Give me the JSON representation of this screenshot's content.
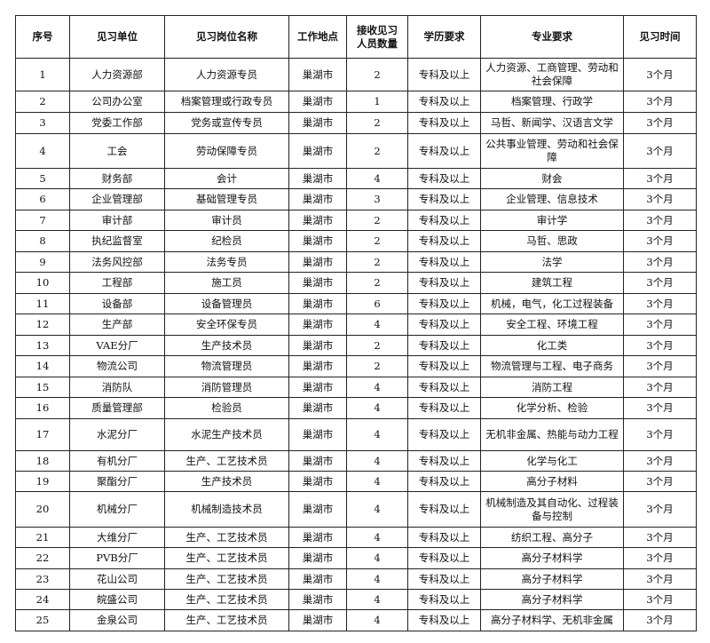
{
  "table": {
    "headers": [
      "序号",
      "见习单位",
      "见习岗位名称",
      "工作地点",
      "接收见习人员数量",
      "学历要求",
      "专业要求",
      "见习时间"
    ],
    "rows": [
      [
        "1",
        "人力资源部",
        "人力资源专员",
        "巢湖市",
        "2",
        "专科及以上",
        "人力资源、工商管理、劳动和社会保障",
        "3个月"
      ],
      [
        "2",
        "公司办公室",
        "档案管理或行政专员",
        "巢湖市",
        "1",
        "专科及以上",
        "档案管理、行政学",
        "3个月"
      ],
      [
        "3",
        "党委工作部",
        "党务或宣传专员",
        "巢湖市",
        "2",
        "专科及以上",
        "马哲、新闻学、汉语言文学",
        "3个月"
      ],
      [
        "4",
        "工会",
        "劳动保障专员",
        "巢湖市",
        "2",
        "专科及以上",
        "公共事业管理、劳动和社会保障",
        "3个月"
      ],
      [
        "5",
        "财务部",
        "会计",
        "巢湖市",
        "4",
        "专科及以上",
        "财会",
        "3个月"
      ],
      [
        "6",
        "企业管理部",
        "基础管理专员",
        "巢湖市",
        "3",
        "专科及以上",
        "企业管理、信息技术",
        "3个月"
      ],
      [
        "7",
        "审计部",
        "审计员",
        "巢湖市",
        "2",
        "专科及以上",
        "审计学",
        "3个月"
      ],
      [
        "8",
        "执纪监督室",
        "纪检员",
        "巢湖市",
        "2",
        "专科及以上",
        "马哲、思政",
        "3个月"
      ],
      [
        "9",
        "法务风控部",
        "法务专员",
        "巢湖市",
        "2",
        "专科及以上",
        "法学",
        "3个月"
      ],
      [
        "10",
        "工程部",
        "施工员",
        "巢湖市",
        "2",
        "专科及以上",
        "建筑工程",
        "3个月"
      ],
      [
        "11",
        "设备部",
        "设备管理员",
        "巢湖市",
        "6",
        "专科及以上",
        "机械，电气，化工过程装备",
        "3个月"
      ],
      [
        "12",
        "生产部",
        "安全环保专员",
        "巢湖市",
        "4",
        "专科及以上",
        "安全工程、环境工程",
        "3个月"
      ],
      [
        "13",
        "VAE分厂",
        "生产技术员",
        "巢湖市",
        "2",
        "专科及以上",
        "化工类",
        "3个月"
      ],
      [
        "14",
        "物流公司",
        "物流管理员",
        "巢湖市",
        "2",
        "专科及以上",
        "物流管理与工程、电子商务",
        "3个月"
      ],
      [
        "15",
        "消防队",
        "消防管理员",
        "巢湖市",
        "4",
        "专科及以上",
        "消防工程",
        "3个月"
      ],
      [
        "16",
        "质量管理部",
        "检验员",
        "巢湖市",
        "4",
        "专科及以上",
        "化学分析、检验",
        "3个月"
      ],
      [
        "17",
        "水泥分厂",
        "水泥生产技术员",
        "巢湖市",
        "4",
        "专科及以上",
        "无机非金属、热能与动力工程",
        "3个月"
      ],
      [
        "18",
        "有机分厂",
        "生产、工艺技术员",
        "巢湖市",
        "4",
        "专科及以上",
        "化学与化工",
        "3个月"
      ],
      [
        "19",
        "聚酯分厂",
        "生产技术员",
        "巢湖市",
        "4",
        "专科及以上",
        "高分子材料",
        "3个月"
      ],
      [
        "20",
        "机械分厂",
        "机械制造技术员",
        "巢湖市",
        "4",
        "专科及以上",
        "机械制造及其自动化、过程装备与控制",
        "3个月"
      ],
      [
        "21",
        "大维分厂",
        "生产、工艺技术员",
        "巢湖市",
        "4",
        "专科及以上",
        "纺织工程、高分子",
        "3个月"
      ],
      [
        "22",
        "PVB分厂",
        "生产、工艺技术员",
        "巢湖市",
        "4",
        "专科及以上",
        "高分子材料学",
        "3个月"
      ],
      [
        "23",
        "花山公司",
        "生产、工艺技术员",
        "巢湖市",
        "4",
        "专科及以上",
        "高分子材料学",
        "3个月"
      ],
      [
        "24",
        "皖盛公司",
        "生产、工艺技术员",
        "巢湖市",
        "4",
        "专科及以上",
        "高分子材料学",
        "3个月"
      ],
      [
        "25",
        "金泉公司",
        "生产、工艺技术员",
        "巢湖市",
        "4",
        "专科及以上",
        "高分子材料学、无机非金属",
        "3个月"
      ]
    ]
  }
}
